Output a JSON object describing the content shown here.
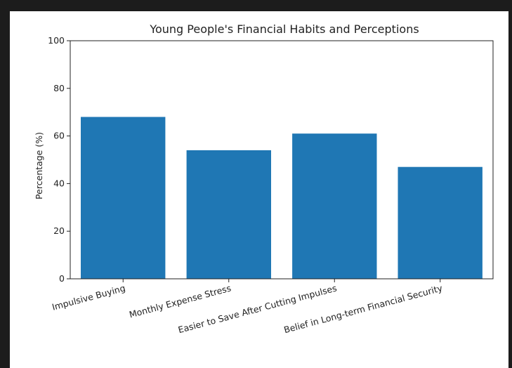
{
  "chart_data": {
    "type": "bar",
    "title": "Young People's Financial Habits and Perceptions",
    "xlabel": "",
    "ylabel": "Percentage (%)",
    "categories": [
      "Impulsive Buying",
      "Monthly Expense Stress",
      "Easier to Save After Cutting Impulses",
      "Belief in Long-term Financial Security"
    ],
    "values": [
      68,
      54,
      61,
      47
    ],
    "ylim": [
      0,
      100
    ],
    "yticks": [
      "0",
      "20",
      "40",
      "60",
      "80",
      "100"
    ],
    "bar_color": "#1f77b4",
    "grid": false,
    "legend": "none"
  }
}
